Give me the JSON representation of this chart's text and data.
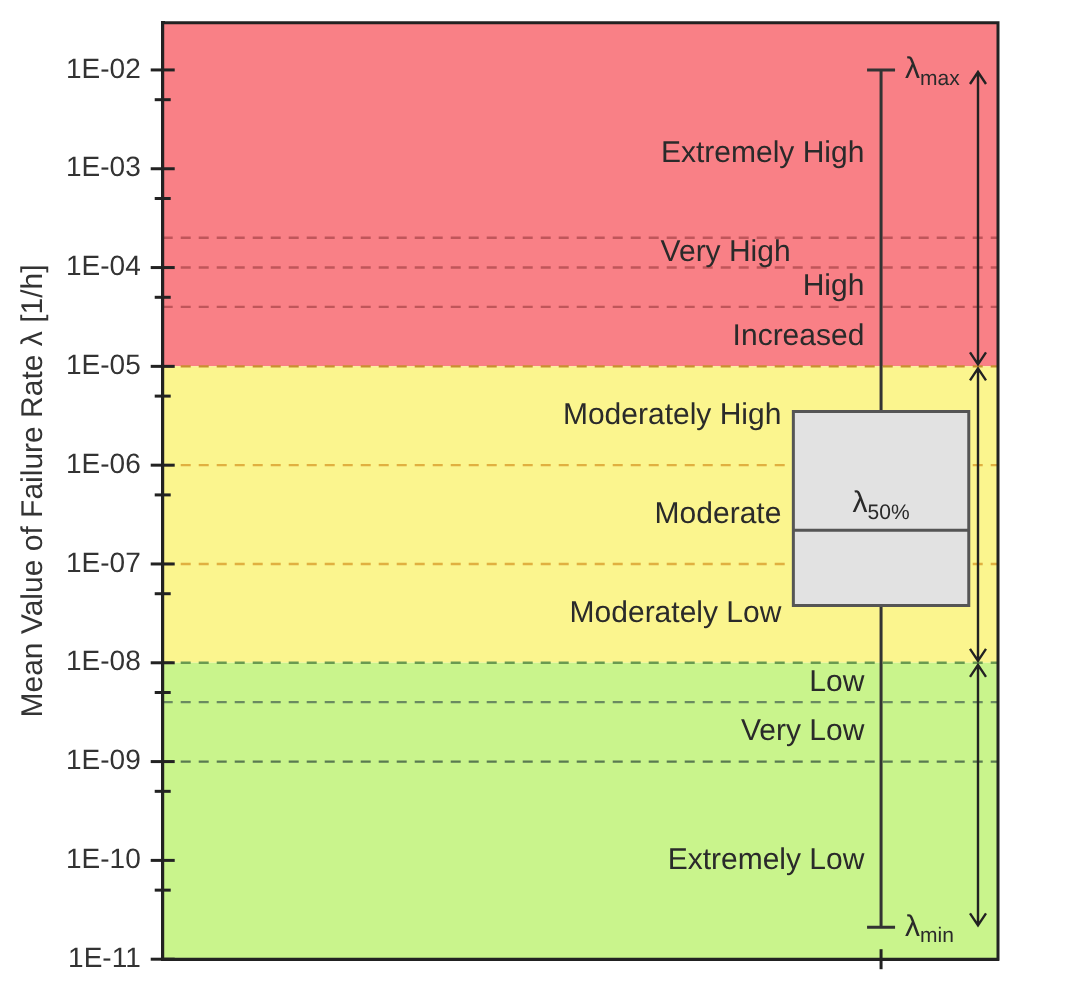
{
  "chart_data": {
    "type": "box",
    "ylabel": "Mean Value of Failure Rate λ [1/h]",
    "log": true,
    "categories": [
      null
    ],
    "boxes": [
      {
        "low": 2.1e-11,
        "q1": 3.8e-08,
        "median": 2.2e-07,
        "q3": 3.5e-06,
        "high": 0.01
      }
    ],
    "color": "#e2e2e2",
    "ylim": [
      1e-11,
      0.03
    ],
    "yticks": [
      {
        "value": 0.01,
        "label": "1E-02"
      },
      {
        "value": 0.005,
        "label": null
      },
      {
        "value": 0.001,
        "label": "1E-03"
      },
      {
        "value": 0.0005,
        "label": null
      },
      {
        "value": 0.0001,
        "label": "1E-04"
      },
      {
        "value": 5e-05,
        "label": null
      },
      {
        "value": 1e-05,
        "label": "1E-05"
      },
      {
        "value": 5e-06,
        "label": null
      },
      {
        "value": 1e-06,
        "label": "1E-06"
      },
      {
        "value": 5e-07,
        "label": null
      },
      {
        "value": 1e-07,
        "label": "1E-07"
      },
      {
        "value": 5e-08,
        "label": null
      },
      {
        "value": 1e-08,
        "label": "1E-08"
      },
      {
        "value": 5e-09,
        "label": null
      },
      {
        "value": 1e-09,
        "label": "1E-09"
      },
      {
        "value": 5e-10,
        "label": null
      },
      {
        "value": 1e-10,
        "label": "1E-10"
      },
      {
        "value": 5e-11,
        "label": null
      },
      {
        "value": 1e-11,
        "label": "1E-11"
      }
    ],
    "bands": [
      {
        "axis": "y",
        "from": 1e-05,
        "to": 0.03,
        "color": "#f98086"
      },
      {
        "axis": "y",
        "from": 1e-08,
        "to": 1e-05,
        "color": "#fbf58e"
      },
      {
        "axis": "y",
        "from": 1e-11,
        "to": 1e-08,
        "color": "#c9f48c"
      }
    ],
    "ref_lines": [
      {
        "axis": "y",
        "value": 0.0002,
        "color": "#c0555a",
        "line_style": "dashed"
      },
      {
        "axis": "y",
        "value": 0.0001,
        "color": "#c0555a",
        "line_style": "dashed"
      },
      {
        "axis": "y",
        "value": 4e-05,
        "color": "#c0555a",
        "line_style": "dashed"
      },
      {
        "axis": "y",
        "value": 1e-05,
        "color": "#c89030",
        "line_style": "dashed"
      },
      {
        "axis": "y",
        "value": 1e-06,
        "color": "#e0b040",
        "line_style": "dashed"
      },
      {
        "axis": "y",
        "value": 1e-07,
        "color": "#e0b040",
        "line_style": "dashed"
      },
      {
        "axis": "y",
        "value": 1e-08,
        "color": "#6a9a50",
        "line_style": "dashed"
      },
      {
        "axis": "y",
        "value": 4e-09,
        "color": "#6a8a60",
        "line_style": "dashed"
      },
      {
        "axis": "y",
        "value": 1e-09,
        "color": "#5a7a50",
        "line_style": "dashed"
      }
    ],
    "annotations": [
      "Extremely High",
      "Very High",
      "High",
      "Increased",
      "Moderately High",
      "Moderate",
      "Moderately Low",
      "Low",
      "Very Low",
      "Extremely Low",
      "λ$_{max}$",
      "λ$_{50%}$",
      "λ$_{min}$"
    ]
  }
}
